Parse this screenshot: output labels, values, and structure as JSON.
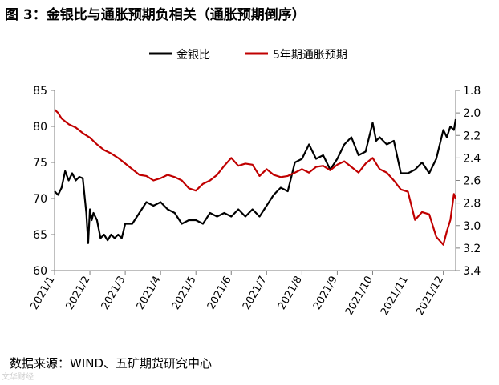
{
  "title": "图 3：金银比与通胀预期负相关（通胀预期倒序）",
  "source": "数据来源：WIND、五矿期货研究中心",
  "watermark": "文华财经",
  "colors": {
    "series1": "#000000",
    "series2": "#c00000",
    "axis": "#7f7f7f"
  },
  "chart_data": {
    "type": "line",
    "title": "",
    "legend_position": "top",
    "grid": false,
    "x_tick_labels": [
      "2021/1",
      "2021/2",
      "2021/3",
      "2021/4",
      "2021/5",
      "2021/6",
      "2021/7",
      "2021/8",
      "2021/9",
      "2021/10",
      "2021/11",
      "2021/12"
    ],
    "x_range": [
      0,
      11.35
    ],
    "y_left": {
      "min": 60,
      "max": 85,
      "ticks": [
        "60",
        "65",
        "70",
        "75",
        "80",
        "85"
      ]
    },
    "y_right": {
      "min": 1.8,
      "max": 3.4,
      "inverted": true,
      "ticks": [
        "1.8",
        "2.0",
        "2.2",
        "2.4",
        "2.6",
        "2.8",
        "3.0",
        "3.2",
        "3.4"
      ]
    },
    "series": [
      {
        "name": "金银比",
        "axis": "left",
        "x": [
          0,
          0.1,
          0.2,
          0.3,
          0.4,
          0.5,
          0.6,
          0.7,
          0.8,
          0.9,
          0.95,
          1.0,
          1.05,
          1.1,
          1.2,
          1.3,
          1.4,
          1.5,
          1.6,
          1.7,
          1.8,
          1.9,
          2.0,
          2.2,
          2.4,
          2.6,
          2.8,
          3.0,
          3.2,
          3.4,
          3.6,
          3.8,
          4.0,
          4.2,
          4.4,
          4.6,
          4.8,
          5.0,
          5.2,
          5.4,
          5.6,
          5.8,
          6.0,
          6.2,
          6.4,
          6.6,
          6.8,
          7.0,
          7.2,
          7.4,
          7.6,
          7.8,
          8.0,
          8.2,
          8.4,
          8.6,
          8.8,
          9.0,
          9.1,
          9.2,
          9.4,
          9.6,
          9.8,
          10.0,
          10.2,
          10.4,
          10.6,
          10.8,
          11.0,
          11.1,
          11.2,
          11.3,
          11.35
        ],
        "values": [
          71,
          70.5,
          71.5,
          73.8,
          72.5,
          73.5,
          72.5,
          73,
          72.8,
          68,
          63.8,
          68.5,
          67,
          68,
          67,
          64.5,
          65,
          64.2,
          65,
          64.5,
          65,
          64.5,
          66.5,
          66.5,
          68,
          69.5,
          69,
          69.5,
          68.5,
          68,
          66.5,
          67,
          67,
          66.5,
          68,
          67.5,
          68,
          67.5,
          68.5,
          67.5,
          68.5,
          67.5,
          69,
          70.5,
          71.5,
          71,
          75,
          75.5,
          77.5,
          75.5,
          76,
          74,
          75.5,
          77.5,
          78.5,
          76,
          76.5,
          80.5,
          78,
          78.5,
          77.5,
          78,
          73.5,
          73.5,
          74,
          75,
          73.5,
          75.5,
          79.5,
          78.5,
          80,
          79.5,
          81
        ]
      },
      {
        "name": "5年期通胀预期",
        "axis": "right",
        "x": [
          0,
          0.1,
          0.2,
          0.4,
          0.6,
          0.8,
          1.0,
          1.2,
          1.4,
          1.6,
          1.8,
          2.0,
          2.2,
          2.4,
          2.6,
          2.8,
          3.0,
          3.2,
          3.4,
          3.6,
          3.8,
          4.0,
          4.2,
          4.4,
          4.6,
          4.8,
          5.0,
          5.2,
          5.4,
          5.6,
          5.8,
          6.0,
          6.2,
          6.4,
          6.6,
          6.8,
          7.0,
          7.2,
          7.4,
          7.6,
          7.8,
          8.0,
          8.2,
          8.4,
          8.6,
          8.8,
          9.0,
          9.2,
          9.4,
          9.6,
          9.8,
          10.0,
          10.2,
          10.4,
          10.6,
          10.8,
          11.0,
          11.1,
          11.2,
          11.3,
          11.35
        ],
        "values": [
          1.97,
          2.0,
          2.05,
          2.1,
          2.13,
          2.18,
          2.22,
          2.28,
          2.33,
          2.36,
          2.4,
          2.45,
          2.5,
          2.55,
          2.56,
          2.6,
          2.58,
          2.55,
          2.57,
          2.6,
          2.67,
          2.69,
          2.63,
          2.6,
          2.55,
          2.47,
          2.4,
          2.47,
          2.45,
          2.46,
          2.56,
          2.5,
          2.55,
          2.57,
          2.56,
          2.53,
          2.5,
          2.53,
          2.48,
          2.47,
          2.51,
          2.46,
          2.43,
          2.48,
          2.53,
          2.45,
          2.4,
          2.5,
          2.53,
          2.6,
          2.68,
          2.7,
          2.95,
          2.88,
          2.9,
          3.1,
          3.17,
          3.05,
          2.95,
          2.72,
          2.76
        ]
      }
    ]
  }
}
